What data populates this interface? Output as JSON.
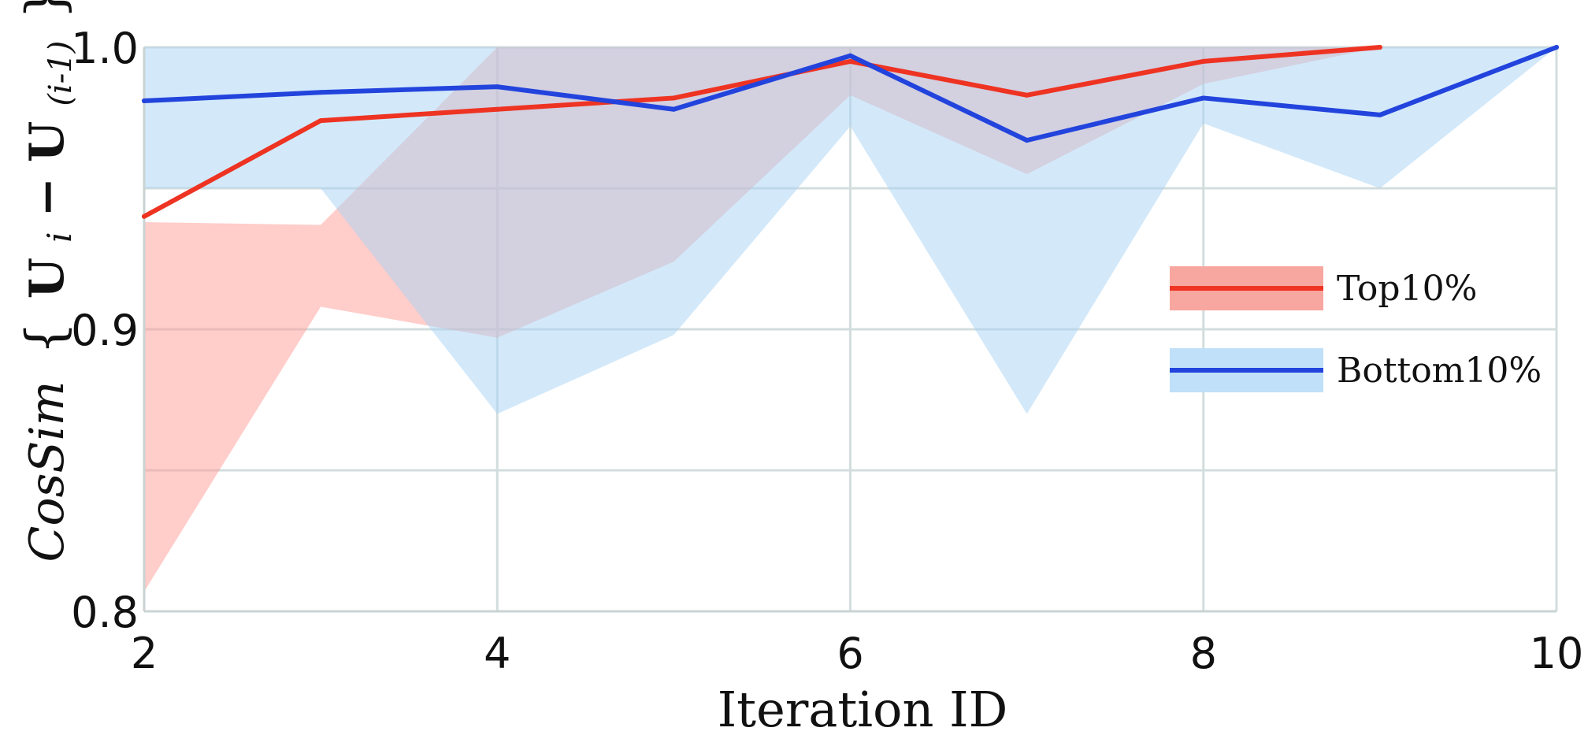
{
  "chart_data": {
    "type": "line",
    "title": "",
    "xlabel": "Iteration ID",
    "ylabel_parts": {
      "cos": "CosSim",
      "brace_open": "{",
      "u": "U",
      "i": "i",
      "minus": "−",
      "u2": "U",
      "i_minus_1": "(i-1)",
      "brace_close": "}"
    },
    "xlim": [
      2,
      10
    ],
    "ylim": [
      0.8,
      1.0
    ],
    "x_ticks": [
      2,
      4,
      6,
      8,
      10
    ],
    "x_tick_labels": [
      "2",
      "4",
      "6",
      "8",
      "10"
    ],
    "y_ticks": [
      0.8,
      0.9,
      1.0
    ],
    "y_tick_labels": [
      "0.8",
      "0.9",
      "1.0"
    ],
    "y_grid": [
      0.8,
      0.85,
      0.9,
      0.95,
      1.0
    ],
    "x_grid": [
      2,
      4,
      6,
      8,
      10
    ],
    "grid": true,
    "legend_position": "right",
    "series": [
      {
        "name": "Top10%",
        "color": "#ee3322",
        "band_color": "#ff9c95",
        "x": [
          2,
          3,
          4,
          5,
          6,
          7,
          8,
          9
        ],
        "values": [
          0.94,
          0.974,
          0.978,
          0.982,
          0.995,
          0.983,
          0.995,
          1.0
        ],
        "lower": [
          0.807,
          0.908,
          0.897,
          0.924,
          0.983,
          0.955,
          0.987,
          1.0
        ],
        "upper": [
          0.938,
          0.937,
          1.0,
          1.0,
          1.0,
          1.0,
          1.0,
          1.0
        ]
      },
      {
        "name": "Bottom10%",
        "color": "#2244dd",
        "band_color": "#a8d4f5",
        "x": [
          2,
          3,
          4,
          5,
          6,
          7,
          8,
          9,
          10
        ],
        "values": [
          0.981,
          0.984,
          0.986,
          0.978,
          0.997,
          0.967,
          0.982,
          0.976,
          1.0
        ],
        "lower": [
          0.95,
          0.95,
          0.87,
          0.898,
          0.972,
          0.87,
          0.973,
          0.95,
          1.0
        ],
        "upper": [
          1.0,
          1.0,
          1.0,
          1.0,
          1.0,
          1.0,
          1.0,
          1.0,
          1.0
        ]
      }
    ]
  }
}
